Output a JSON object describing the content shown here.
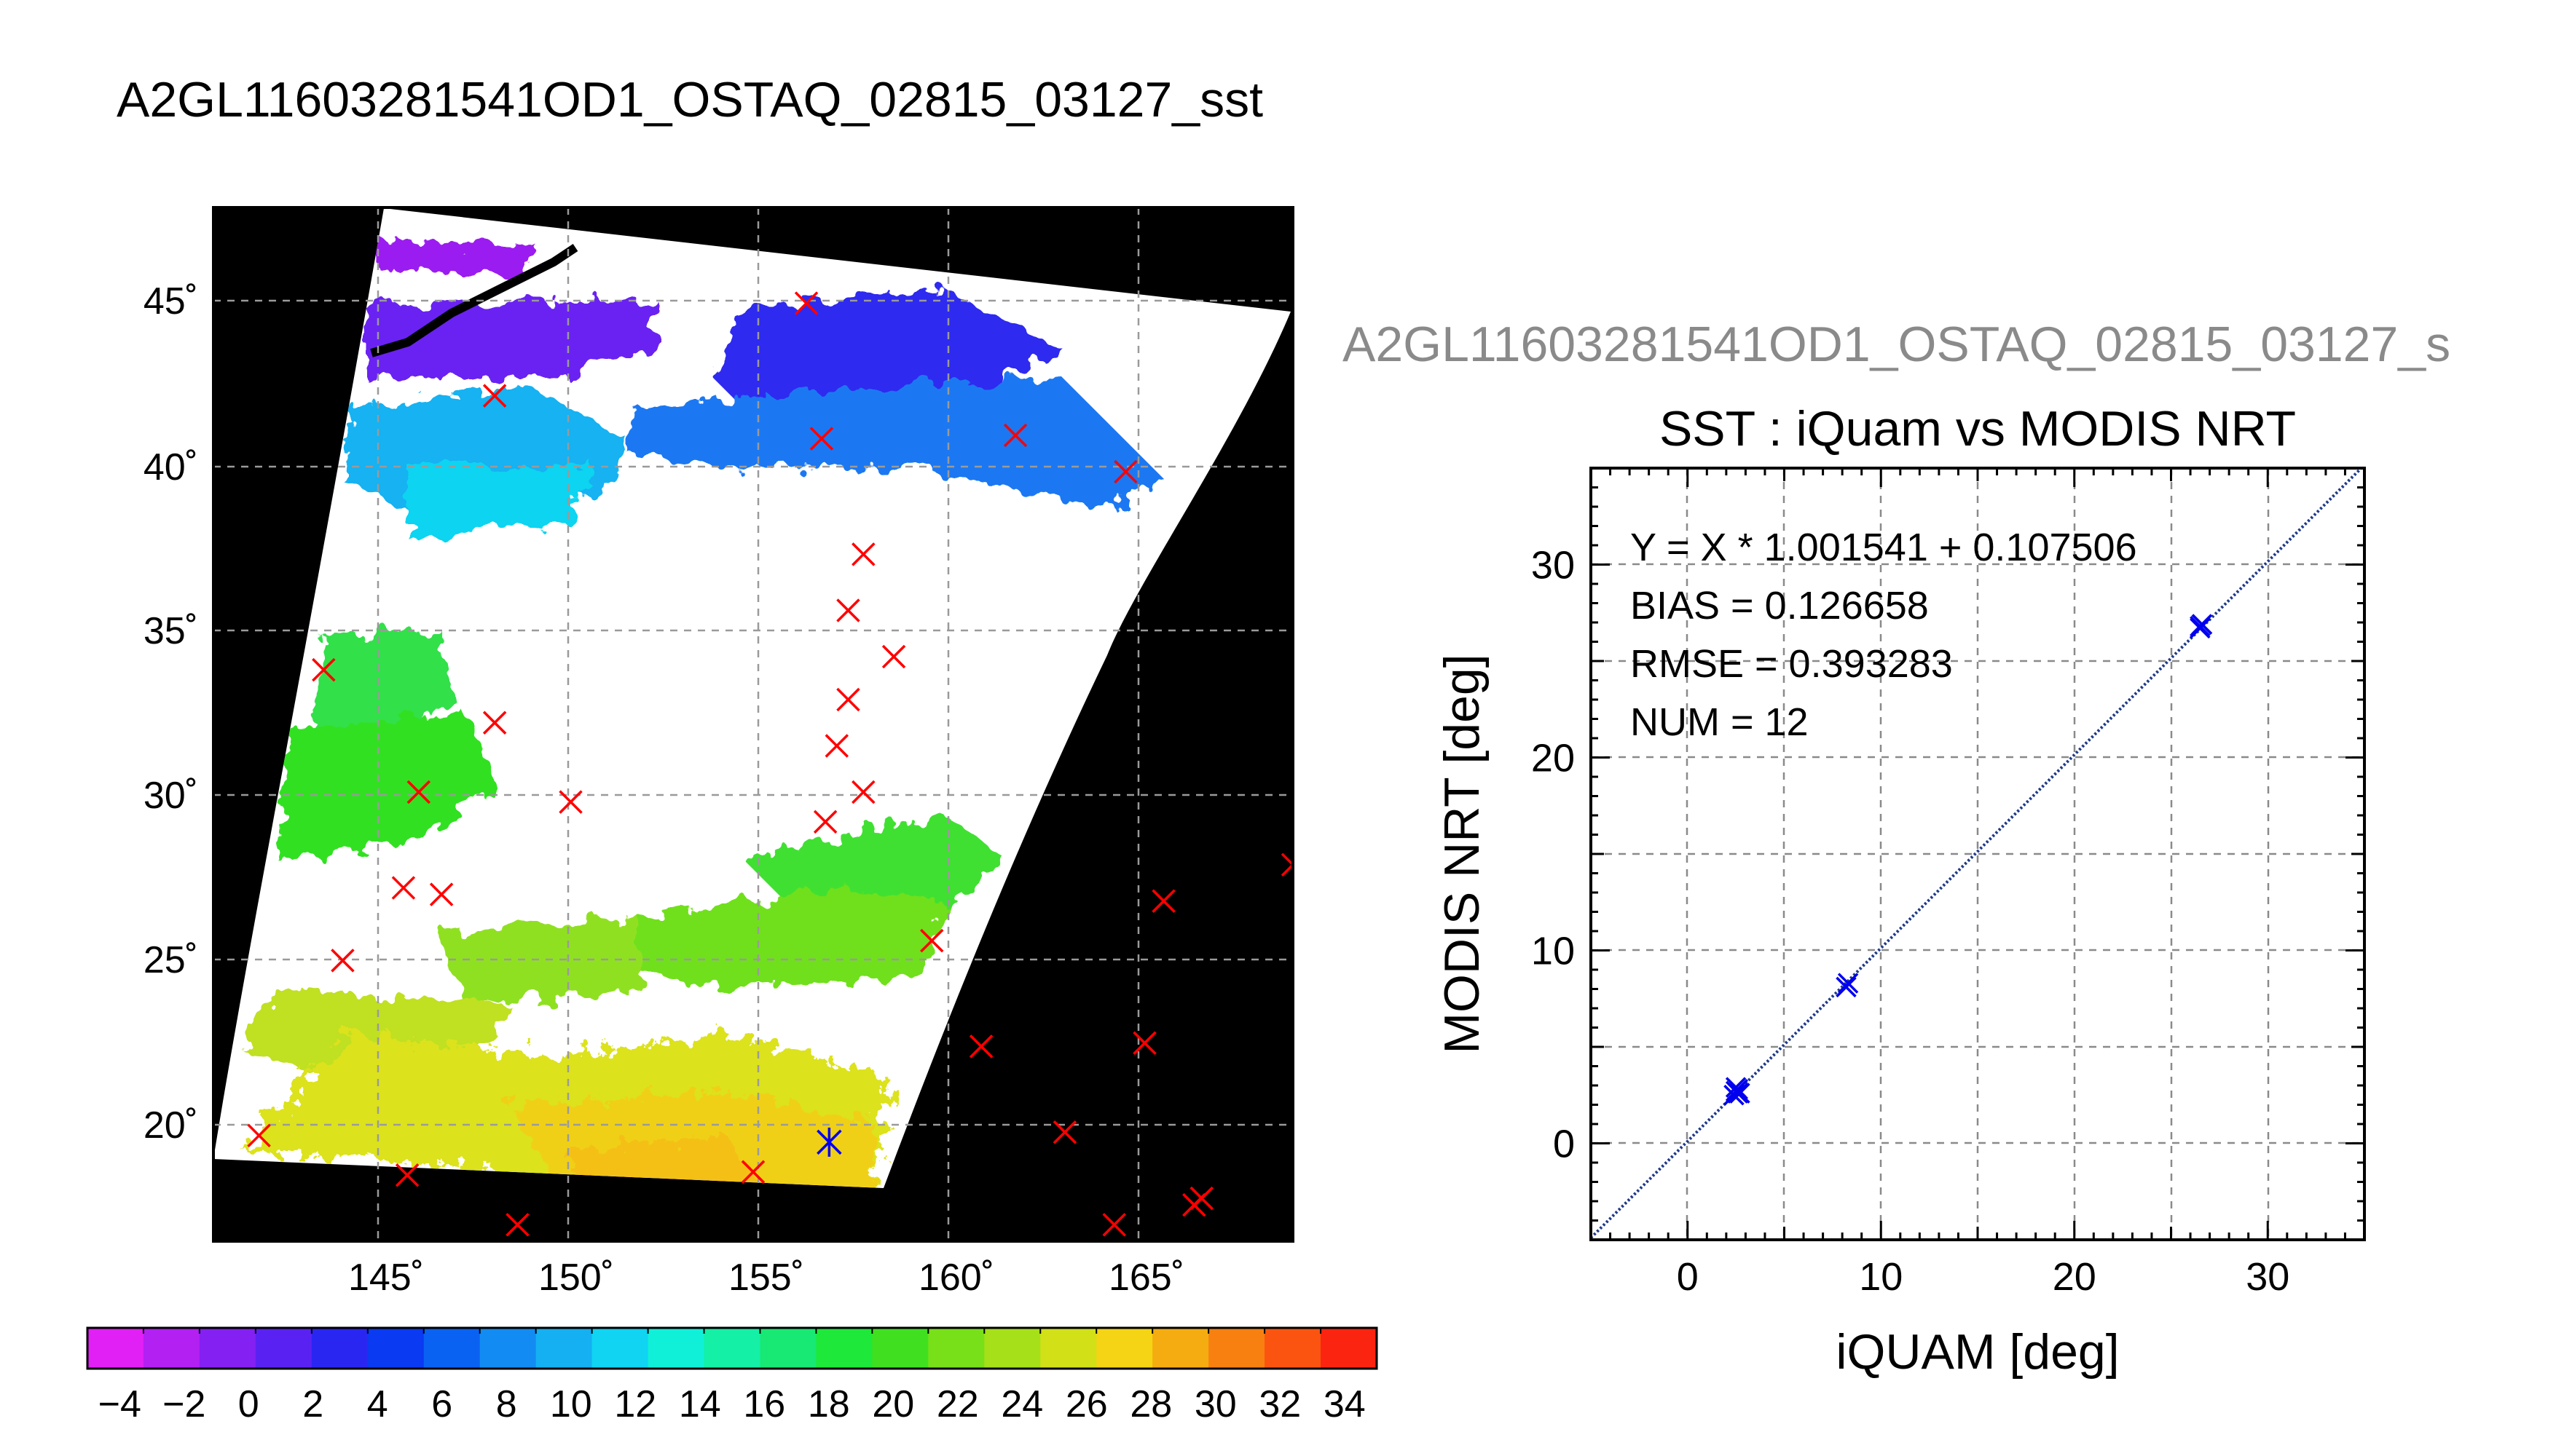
{
  "figure_title": "A2GL11603281541OD1_OSTAQ_02815_03127_sst",
  "map": {
    "lat_ticks": [
      "20˚",
      "25˚",
      "30˚",
      "35˚",
      "40˚",
      "45˚"
    ],
    "lon_ticks": [
      "145˚",
      "150˚",
      "155˚",
      "160˚",
      "165˚"
    ],
    "lat_range": [
      16.5,
      47.8
    ],
    "lon_range": [
      140.8,
      169.2
    ],
    "match_markers_red": [
      [
        142.0,
        19.7
      ],
      [
        145.9,
        18.5
      ],
      [
        148.8,
        17.0
      ],
      [
        155.0,
        18.6
      ],
      [
        164.5,
        17.0
      ],
      [
        166.6,
        17.6
      ],
      [
        166.8,
        17.8
      ],
      [
        144.2,
        25.0
      ],
      [
        145.8,
        27.2
      ],
      [
        146.8,
        27.0
      ],
      [
        146.2,
        30.1
      ],
      [
        150.2,
        29.8
      ],
      [
        156.9,
        29.2
      ],
      [
        157.9,
        30.1
      ],
      [
        157.2,
        31.5
      ],
      [
        157.5,
        32.9
      ],
      [
        148.2,
        32.2
      ],
      [
        143.7,
        33.8
      ],
      [
        158.7,
        34.2
      ],
      [
        157.5,
        35.6
      ],
      [
        157.9,
        37.3
      ],
      [
        159.7,
        25.6
      ],
      [
        165.8,
        26.8
      ],
      [
        169.2,
        27.9
      ],
      [
        161.0,
        22.4
      ],
      [
        165.3,
        22.5
      ],
      [
        163.2,
        19.8
      ],
      [
        164.8,
        39.8
      ],
      [
        161.9,
        40.9
      ],
      [
        156.8,
        40.8
      ],
      [
        148.2,
        42.1
      ],
      [
        156.4,
        44.9
      ]
    ],
    "match_markers_blue": [
      [
        157.0,
        19.5
      ]
    ]
  },
  "colorbar": {
    "labels": [
      "−4",
      "−2",
      "0",
      "2",
      "4",
      "6",
      "8",
      "10",
      "12",
      "14",
      "16",
      "18",
      "20",
      "22",
      "24",
      "26",
      "28",
      "30",
      "32",
      "34"
    ],
    "range": [
      -5,
      35
    ]
  },
  "scatter": {
    "subtitle": "A2GL11603281541OD1_OSTAQ_02815_03127_s",
    "title": "SST : iQuam vs MODIS NRT",
    "xlabel": "iQUAM [deg]",
    "ylabel": "MODIS NRT [deg]",
    "stats": [
      "Y = X * 1.001541 + 0.107506",
      "BIAS = 0.126658",
      "RMSE = 0.393283",
      "NUM = 12"
    ]
  },
  "chart_data": {
    "type": "scatter",
    "title": "SST : iQuam vs MODIS NRT",
    "xlabel": "iQUAM [deg]",
    "ylabel": "MODIS NRT [deg]",
    "xlim": [
      -5,
      35
    ],
    "ylim": [
      -5,
      35
    ],
    "xticks": [
      0,
      10,
      20,
      30
    ],
    "yticks": [
      0,
      10,
      20,
      30
    ],
    "grid": true,
    "fit": {
      "slope": 1.001541,
      "intercept": 0.107506
    },
    "x": [
      2.4,
      2.5,
      2.6,
      2.7,
      2.5,
      2.6,
      8.2,
      8.3,
      26.5,
      26.6,
      26.5,
      26.6
    ],
    "y": [
      2.5,
      2.7,
      2.8,
      2.6,
      2.9,
      2.6,
      8.1,
      8.3,
      26.8,
      26.9,
      26.7,
      26.9
    ]
  },
  "colors": {
    "marker_red": "#ff0000",
    "marker_blue": "#0000ee",
    "fit_line": "#1f3a8a",
    "swath_black": "#000000",
    "subtitle_gray": "#8a8a8a"
  }
}
